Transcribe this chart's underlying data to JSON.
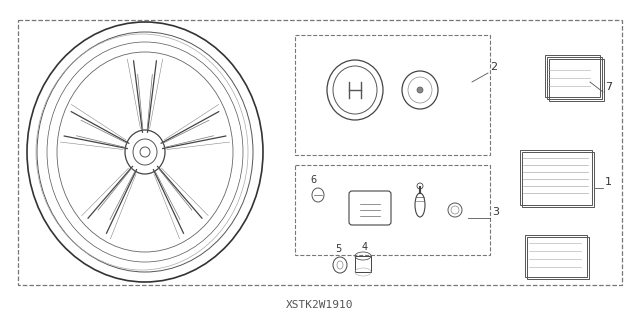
{
  "bg_color": "#ffffff",
  "outer_border_color": "#555555",
  "dashed_line_color": "#777777",
  "title_code": "XSTK2W1910",
  "part_numbers": [
    1,
    2,
    3,
    4,
    5,
    6,
    7
  ],
  "fig_width": 6.4,
  "fig_height": 3.19
}
